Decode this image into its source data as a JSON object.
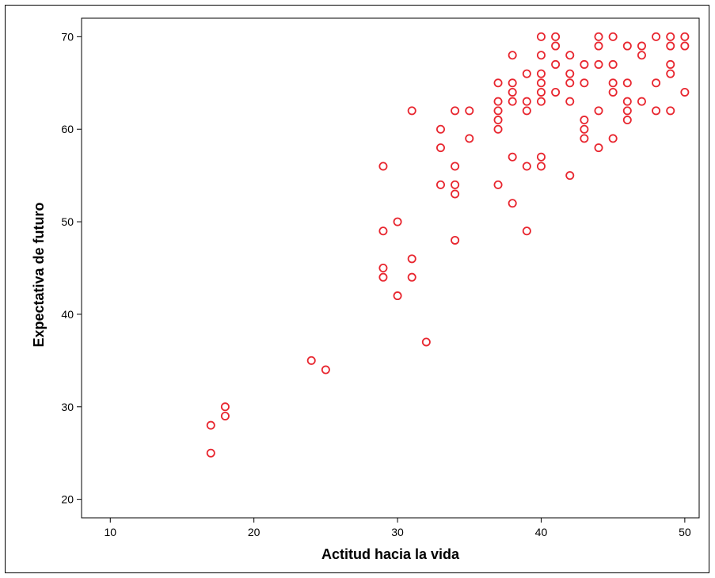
{
  "chart_data": {
    "type": "scatter",
    "title": "",
    "xlabel": "Actitud hacia la vida",
    "ylabel": "Expectativa de futuro",
    "xlim": [
      8,
      51
    ],
    "ylim": [
      18,
      72
    ],
    "xticks": [
      10,
      20,
      30,
      40,
      50
    ],
    "yticks": [
      20,
      30,
      40,
      50,
      60,
      70
    ],
    "grid": false,
    "legend": "none",
    "marker": "open-circle",
    "color": "#e8262f",
    "points": [
      [
        17,
        28
      ],
      [
        17,
        25
      ],
      [
        18,
        30
      ],
      [
        18,
        29
      ],
      [
        24,
        35
      ],
      [
        25,
        34
      ],
      [
        29,
        56
      ],
      [
        29,
        49
      ],
      [
        29,
        45
      ],
      [
        29,
        44
      ],
      [
        30,
        50
      ],
      [
        30,
        42
      ],
      [
        31,
        62
      ],
      [
        31,
        46
      ],
      [
        31,
        44
      ],
      [
        32,
        37
      ],
      [
        33,
        60
      ],
      [
        33,
        58
      ],
      [
        33,
        54
      ],
      [
        34,
        62
      ],
      [
        34,
        56
      ],
      [
        34,
        54
      ],
      [
        34,
        53
      ],
      [
        34,
        48
      ],
      [
        35,
        62
      ],
      [
        35,
        59
      ],
      [
        37,
        65
      ],
      [
        37,
        63
      ],
      [
        37,
        62
      ],
      [
        37,
        61
      ],
      [
        37,
        60
      ],
      [
        37,
        54
      ],
      [
        38,
        68
      ],
      [
        38,
        65
      ],
      [
        38,
        64
      ],
      [
        38,
        63
      ],
      [
        38,
        57
      ],
      [
        38,
        52
      ],
      [
        39,
        66
      ],
      [
        39,
        63
      ],
      [
        39,
        62
      ],
      [
        39,
        56
      ],
      [
        39,
        49
      ],
      [
        40,
        70
      ],
      [
        40,
        68
      ],
      [
        40,
        66
      ],
      [
        40,
        65
      ],
      [
        40,
        64
      ],
      [
        40,
        63
      ],
      [
        40,
        57
      ],
      [
        40,
        56
      ],
      [
        41,
        70
      ],
      [
        41,
        69
      ],
      [
        41,
        67
      ],
      [
        41,
        64
      ],
      [
        42,
        68
      ],
      [
        42,
        66
      ],
      [
        42,
        65
      ],
      [
        42,
        63
      ],
      [
        42,
        55
      ],
      [
        43,
        67
      ],
      [
        43,
        65
      ],
      [
        43,
        61
      ],
      [
        43,
        60
      ],
      [
        43,
        59
      ],
      [
        44,
        70
      ],
      [
        44,
        69
      ],
      [
        44,
        67
      ],
      [
        44,
        62
      ],
      [
        44,
        58
      ],
      [
        45,
        70
      ],
      [
        45,
        67
      ],
      [
        45,
        65
      ],
      [
        45,
        64
      ],
      [
        45,
        59
      ],
      [
        46,
        69
      ],
      [
        46,
        65
      ],
      [
        46,
        63
      ],
      [
        46,
        62
      ],
      [
        46,
        61
      ],
      [
        47,
        69
      ],
      [
        47,
        68
      ],
      [
        47,
        63
      ],
      [
        48,
        70
      ],
      [
        48,
        65
      ],
      [
        48,
        62
      ],
      [
        49,
        70
      ],
      [
        49,
        69
      ],
      [
        49,
        67
      ],
      [
        49,
        66
      ],
      [
        49,
        62
      ],
      [
        50,
        70
      ],
      [
        50,
        69
      ],
      [
        50,
        64
      ]
    ]
  }
}
